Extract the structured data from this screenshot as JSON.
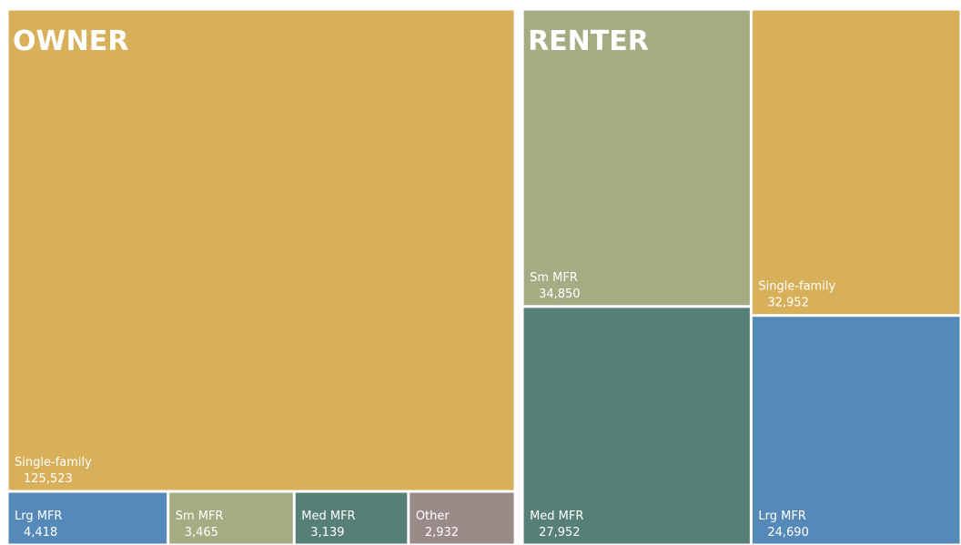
{
  "chart_data": {
    "type": "treemap",
    "groups": [
      {
        "name": "OWNER",
        "labels": [
          "Single-family",
          "Lrg MFR",
          "Sm MFR",
          "Med MFR",
          "Other"
        ],
        "values": [
          125523,
          4418,
          3465,
          3139,
          2932
        ],
        "value_labels": [
          "125,523",
          "4,418",
          "3,465",
          "3,139",
          "2,932"
        ],
        "colors": [
          "#d8b05a",
          "#5589b8",
          "#a5ab82",
          "#567f75",
          "#9a8b88"
        ]
      },
      {
        "name": "RENTER",
        "labels": [
          "Sm MFR",
          "Med MFR",
          "Single-family",
          "Lrg MFR"
        ],
        "values": [
          34850,
          27952,
          32952,
          24690
        ],
        "value_labels": [
          "34,850",
          "27,952",
          "32,952",
          "24,690"
        ],
        "colors": [
          "#a5ab82",
          "#567f75",
          "#d8b05a",
          "#5589b8"
        ]
      }
    ]
  }
}
